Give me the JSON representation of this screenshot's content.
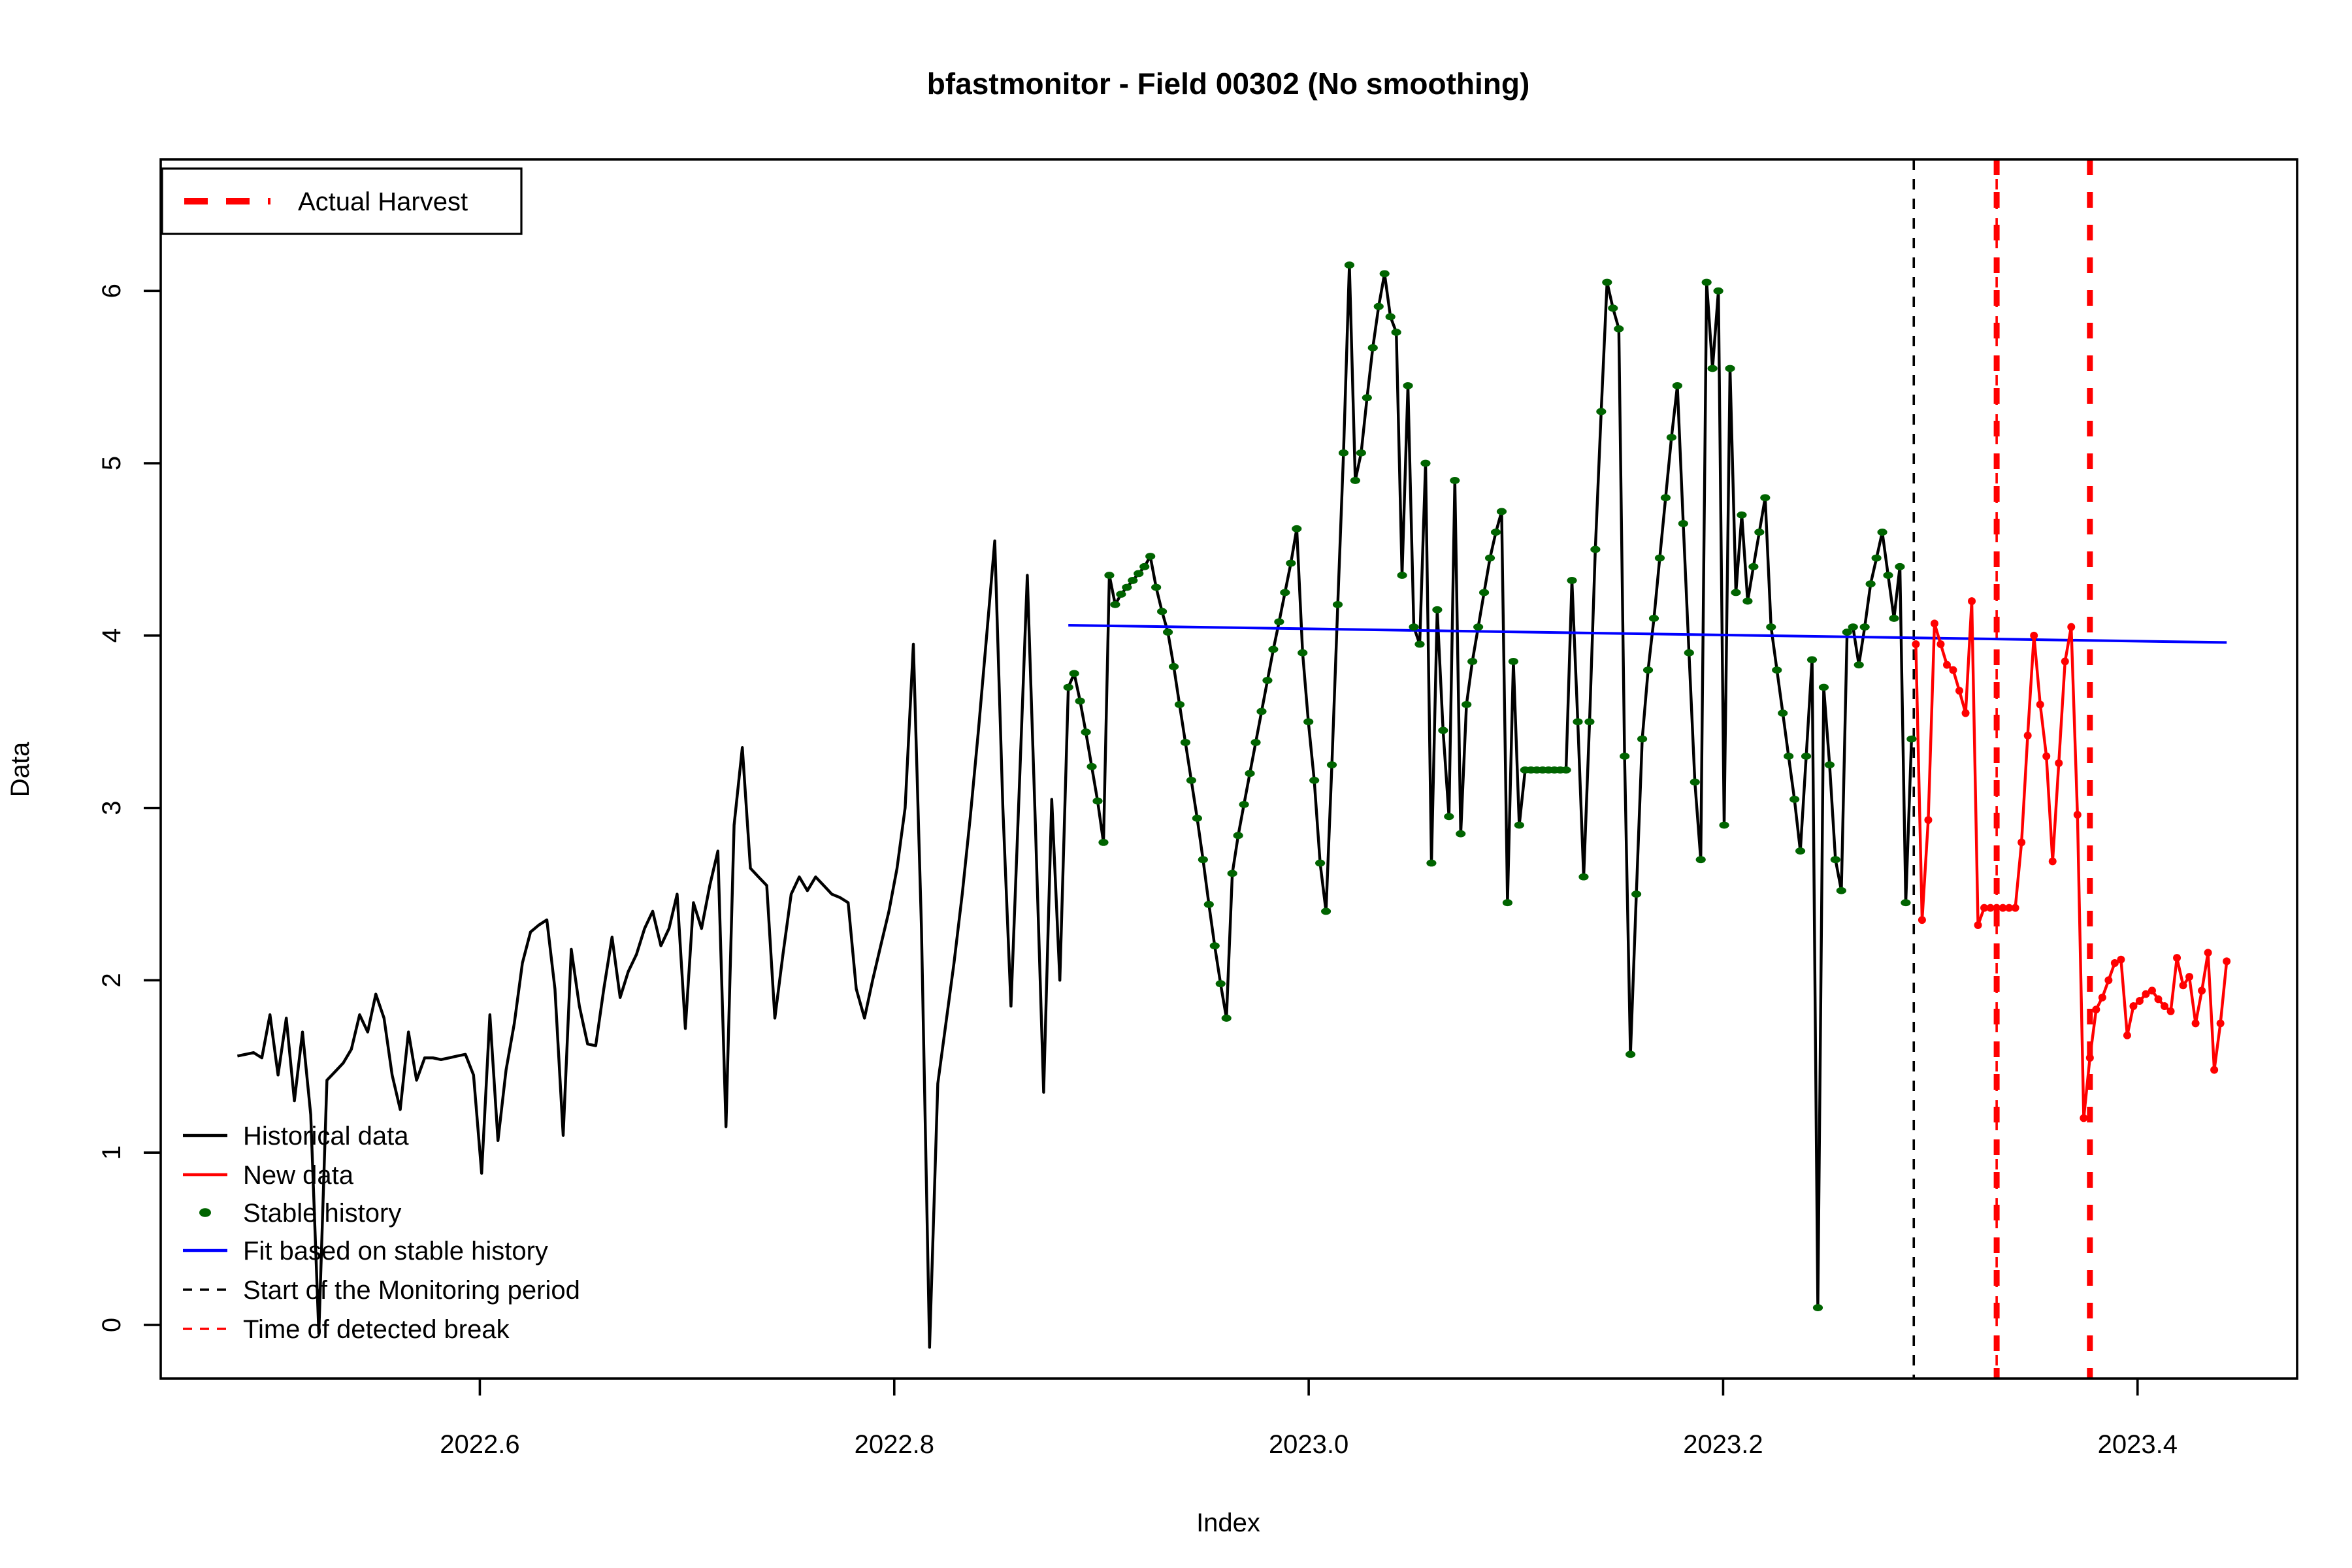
{
  "title": "bfastmonitor - Field 00302 (No smoothing)",
  "colors": {
    "historical": "#000000",
    "new_data": "#FF0000",
    "stable_history": "#006400",
    "fit": "#0000FF",
    "monitor_start": "#000000",
    "detected_break": "#FF0000",
    "harvest": "#FF0000",
    "background": "#FFFFFF"
  },
  "top_legend": {
    "label": "Actual Harvest"
  },
  "bottom_legend": {
    "items": [
      {
        "label": "Historical data",
        "sample": "line",
        "color": "#000000"
      },
      {
        "label": "New data",
        "sample": "line",
        "color": "#FF0000"
      },
      {
        "label": "Stable history",
        "sample": "dot",
        "color": "#006400"
      },
      {
        "label": "Fit based on stable history",
        "sample": "line",
        "color": "#0000FF"
      },
      {
        "label": "Start of the Monitoring period",
        "sample": "dash",
        "color": "#000000"
      },
      {
        "label": "Time of detected break",
        "sample": "dash",
        "color": "#FF0000"
      }
    ]
  },
  "chart_data": {
    "type": "line",
    "title": "bfastmonitor - Field 00302 (No smoothing)",
    "xlabel": "Index",
    "ylabel": "Data",
    "xlim": [
      2022.446,
      2023.477
    ],
    "ylim": [
      -0.311,
      6.763
    ],
    "grid": false,
    "x_ticks": {
      "values": [
        2022.6,
        2022.8,
        2023.0,
        2023.2,
        2023.4
      ],
      "labels": [
        "2022.6",
        "2022.8",
        "2023.0",
        "2023.2",
        "2023.4"
      ]
    },
    "y_ticks": {
      "values": [
        0,
        1,
        2,
        3,
        4,
        5,
        6
      ],
      "labels": [
        "0",
        "1",
        "2",
        "3",
        "4",
        "5",
        "6"
      ]
    },
    "series": [
      {
        "name": "Historical data",
        "style": "line",
        "color": "#000000",
        "t0": 2022.483,
        "dt": 0.00393,
        "values": [
          1.56,
          1.57,
          1.58,
          1.55,
          1.8,
          1.45,
          1.78,
          1.3,
          1.7,
          1.22,
          -0.05,
          1.42,
          1.47,
          1.52,
          1.6,
          1.8,
          1.7,
          1.92,
          1.78,
          1.45,
          1.25,
          1.7,
          1.42,
          1.55,
          1.55,
          1.54,
          1.55,
          1.56,
          1.57,
          1.45,
          0.88,
          1.8,
          1.07,
          1.48,
          1.75,
          2.1,
          2.28,
          2.32,
          2.35,
          1.95,
          1.1,
          2.18,
          1.85,
          1.63,
          1.62,
          1.95,
          2.25,
          1.9,
          2.05,
          2.15,
          2.3,
          2.4,
          2.2,
          2.3,
          2.5,
          1.72,
          2.45,
          2.3,
          2.55,
          2.75,
          1.15,
          2.9,
          3.35,
          2.65,
          2.6,
          2.55,
          1.78,
          2.15,
          2.5,
          2.6,
          2.52,
          2.6,
          2.55,
          2.5,
          2.48,
          2.45,
          1.95,
          1.78,
          2.0,
          2.2,
          2.4,
          2.65,
          3.0,
          3.95,
          2.3,
          -0.13,
          1.4,
          1.75,
          2.1,
          2.5,
          2.95,
          3.45,
          4.0,
          4.55,
          3.0,
          1.85,
          3.1,
          4.35,
          2.9,
          1.35,
          3.05,
          2.0
        ]
      },
      {
        "name": "Stable history",
        "style": "line+dots",
        "color": "#006400",
        "line_color": "#000000",
        "t0": 2022.884,
        "dt": 0.002826,
        "values": [
          3.7,
          3.78,
          3.62,
          3.44,
          3.24,
          3.04,
          2.8,
          4.35,
          4.18,
          4.24,
          4.28,
          4.32,
          4.36,
          4.4,
          4.46,
          4.28,
          4.14,
          4.02,
          3.82,
          3.6,
          3.38,
          3.16,
          2.94,
          2.7,
          2.44,
          2.2,
          1.98,
          1.78,
          2.62,
          2.84,
          3.02,
          3.2,
          3.38,
          3.56,
          3.74,
          3.92,
          4.08,
          4.25,
          4.42,
          4.62,
          3.9,
          3.5,
          3.16,
          2.68,
          2.4,
          3.25,
          4.18,
          5.06,
          6.15,
          4.9,
          5.06,
          5.38,
          5.67,
          5.91,
          6.1,
          5.85,
          5.76,
          4.35,
          5.45,
          4.05,
          3.95,
          5.0,
          2.68,
          4.15,
          3.45,
          2.95,
          4.9,
          2.85,
          3.6,
          3.85,
          4.05,
          4.25,
          4.45,
          4.6,
          4.72,
          2.45,
          3.85,
          2.9,
          3.22,
          3.22,
          3.22,
          3.22,
          3.22,
          3.22,
          3.22,
          3.22,
          4.32,
          3.5,
          2.6,
          3.5,
          4.5,
          5.3,
          6.05,
          5.9,
          5.78,
          3.3,
          1.57,
          2.5,
          3.4,
          3.8,
          4.1,
          4.45,
          4.8,
          5.15,
          5.45,
          4.65,
          3.9,
          3.15,
          2.7,
          6.05,
          5.55,
          6.0,
          2.9,
          5.55,
          4.25,
          4.7,
          4.2,
          4.4,
          4.6,
          4.8,
          4.05,
          3.8,
          3.55,
          3.3,
          3.05,
          2.75,
          3.3,
          3.86,
          0.1,
          3.7,
          3.25,
          2.7,
          2.52,
          4.02,
          4.05,
          3.83,
          4.05,
          4.3,
          4.45,
          4.6,
          4.35,
          4.1,
          4.4,
          2.45,
          3.4
        ]
      },
      {
        "name": "New data",
        "style": "line+dots",
        "color": "#FF0000",
        "t0": 2023.293,
        "dt": 0.003,
        "values": [
          3.95,
          2.35,
          2.93,
          4.07,
          3.95,
          3.83,
          3.8,
          3.68,
          3.55,
          4.2,
          2.32,
          2.42,
          2.42,
          2.42,
          2.42,
          2.42,
          2.42,
          2.8,
          3.42,
          4.0,
          3.6,
          3.3,
          2.69,
          3.26,
          3.85,
          4.05,
          2.96,
          1.2,
          1.55,
          1.83,
          1.9,
          2.0,
          2.1,
          2.12,
          1.68,
          1.85,
          1.88,
          1.92,
          1.94,
          1.89,
          1.85,
          1.82,
          2.13,
          1.97,
          2.02,
          1.75,
          1.94,
          2.16,
          1.48,
          1.75,
          2.11
        ]
      },
      {
        "name": "Fit based on stable history",
        "style": "line",
        "color": "#0000FF",
        "points": [
          [
            2022.884,
            4.06
          ],
          [
            2023.443,
            3.96
          ]
        ]
      }
    ],
    "vlines": [
      {
        "name": "Start of the Monitoring period",
        "x": 2023.292,
        "color": "#000000",
        "width": 1.8,
        "dash": "8,7"
      },
      {
        "name": "Time of detected break",
        "x": 2023.332,
        "color": "#FF0000",
        "width": 1.8,
        "dash": "8,7"
      },
      {
        "name": "Actual Harvest",
        "x": 2023.332,
        "color": "#FF0000",
        "width": 4.5,
        "dash": "12,13"
      },
      {
        "name": "Actual Harvest",
        "x": 2023.377,
        "color": "#FF0000",
        "width": 4.5,
        "dash": "12,13"
      }
    ],
    "legend_position": "bottomleft",
    "top_legend_position": "topleft"
  }
}
